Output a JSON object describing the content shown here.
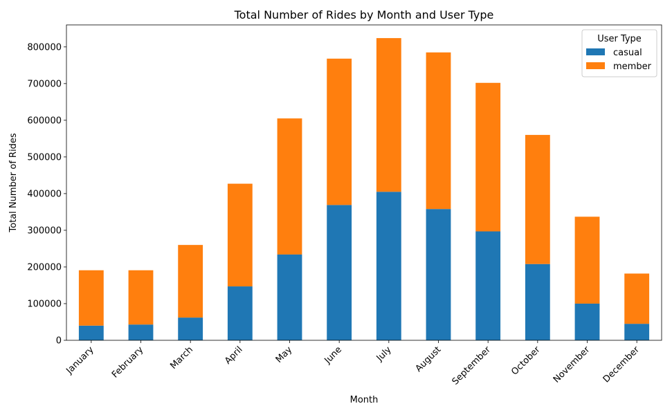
{
  "chart_data": {
    "type": "bar",
    "stacked": true,
    "title": "Total Number of Rides by Month and User Type",
    "xlabel": "Month",
    "ylabel": "Total Number of Rides",
    "categories": [
      "January",
      "February",
      "March",
      "April",
      "May",
      "June",
      "July",
      "August",
      "September",
      "October",
      "November",
      "December"
    ],
    "series": [
      {
        "name": "casual",
        "color": "#1f77b4",
        "values": [
          40000,
          43000,
          62000,
          147000,
          234000,
          369000,
          405000,
          358000,
          297000,
          208000,
          100000,
          45000
        ]
      },
      {
        "name": "member",
        "color": "#ff7f0e",
        "values": [
          151000,
          148000,
          198000,
          280000,
          371000,
          399000,
          419000,
          427000,
          405000,
          352000,
          237000,
          137000
        ]
      }
    ],
    "ylim": [
      0,
      860000
    ],
    "yticks": [
      0,
      100000,
      200000,
      300000,
      400000,
      500000,
      600000,
      700000,
      800000
    ],
    "grid": false,
    "legend": {
      "title": "User Type",
      "position": "top-right"
    }
  }
}
